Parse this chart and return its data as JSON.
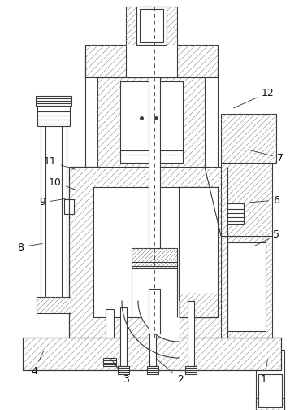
{
  "bg": "#ffffff",
  "lc": "#3a3a3a",
  "lw": 0.8,
  "hc": "#aaaaaa",
  "fs": 9,
  "figsize": [
    3.68,
    5.04
  ],
  "dpi": 100
}
